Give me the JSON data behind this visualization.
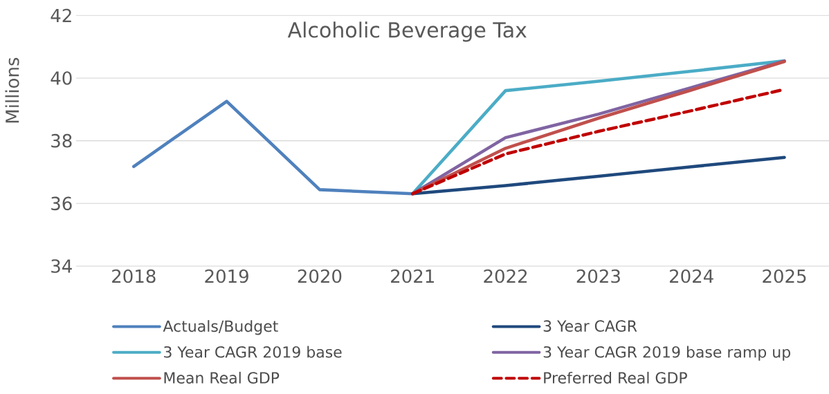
{
  "chart_data": {
    "type": "line",
    "title": "Alcoholic Beverage Tax",
    "ylabel": "Millions",
    "categories": [
      "2018",
      "2019",
      "2020",
      "2021",
      "2022",
      "2023",
      "2024",
      "2025"
    ],
    "series": [
      {
        "name": "Actuals/Budget",
        "color": "#4f81bd",
        "values": [
          37.18,
          39.26,
          36.44,
          36.31,
          null,
          null,
          null,
          null
        ]
      },
      {
        "name": "3 Year CAGR",
        "color": "#1f497d",
        "values": [
          null,
          null,
          null,
          36.31,
          36.57,
          36.87,
          37.17,
          37.47
        ]
      },
      {
        "name": "3 Year CAGR 2019 base",
        "color": "#4bacc6",
        "values": [
          null,
          null,
          null,
          36.31,
          39.6,
          39.9,
          40.22,
          40.55
        ]
      },
      {
        "name": "3 Year CAGR 2019 base ramp up",
        "color": "#8064a2",
        "values": [
          null,
          null,
          null,
          36.31,
          38.1,
          38.85,
          39.7,
          40.55
        ]
      },
      {
        "name": "Mean Real GDP",
        "color": "#c0504d",
        "values": [
          null,
          null,
          null,
          36.31,
          37.76,
          38.72,
          39.62,
          40.53
        ]
      },
      {
        "name": "Preferred Real GDP",
        "color": "#c00000",
        "line_style": "dashed",
        "values": [
          null,
          null,
          null,
          36.31,
          37.58,
          38.3,
          38.96,
          39.64
        ]
      }
    ],
    "ylim": [
      34,
      42
    ],
    "yticks": [
      34,
      36,
      38,
      40,
      42
    ],
    "grid": "y",
    "legend": "bottom"
  }
}
